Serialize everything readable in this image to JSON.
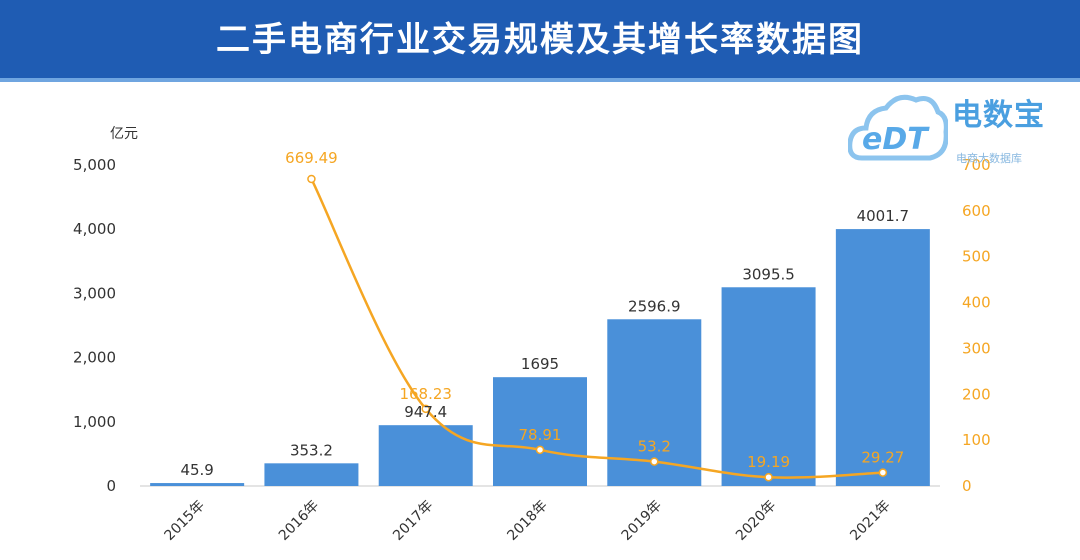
{
  "header": {
    "title": "二手电商行业交易规模及其增长率数据图"
  },
  "logo": {
    "name": "电数宝",
    "mark": "eDT",
    "sub": "电商大数据库"
  },
  "colors": {
    "header_bg": "#1f5cb3",
    "bar": "#4a90d9",
    "line": "#f5a623",
    "axis_text": "#333333"
  },
  "chart_data": {
    "type": "bar",
    "title": "二手电商行业交易规模及其增长率数据图",
    "y_unit_label": "亿元",
    "categories": [
      "2015年",
      "2016年",
      "2017年",
      "2018年",
      "2019年",
      "2020年",
      "2021年"
    ],
    "series": [
      {
        "type": "bar",
        "axis": "left",
        "values": [
          45.9,
          353.2,
          947.4,
          1695,
          2596.9,
          3095.5,
          4001.7
        ],
        "labels": [
          "45.9",
          "353.2",
          "947.4",
          "1695",
          "2596.9",
          "3095.5",
          "4001.7"
        ]
      },
      {
        "type": "line",
        "axis": "right",
        "values": [
          null,
          669.49,
          168.23,
          78.91,
          53.2,
          19.19,
          29.27
        ],
        "labels": [
          "",
          "669.49",
          "168.23",
          "78.91",
          "53.2",
          "19.19",
          "29.27"
        ]
      }
    ],
    "left_axis": {
      "ylim": [
        0,
        5000
      ],
      "ticks": [
        "0",
        "1,000",
        "2,000",
        "3,000",
        "4,000",
        "5,000"
      ],
      "tick_values": [
        0,
        1000,
        2000,
        3000,
        4000,
        5000
      ]
    },
    "right_axis": {
      "ylim": [
        0,
        700
      ],
      "ticks": [
        "0",
        "100",
        "200",
        "300",
        "400",
        "500",
        "600",
        "700"
      ],
      "tick_values": [
        0,
        100,
        200,
        300,
        400,
        500,
        600,
        700
      ]
    },
    "grid": false,
    "legend": "none"
  }
}
